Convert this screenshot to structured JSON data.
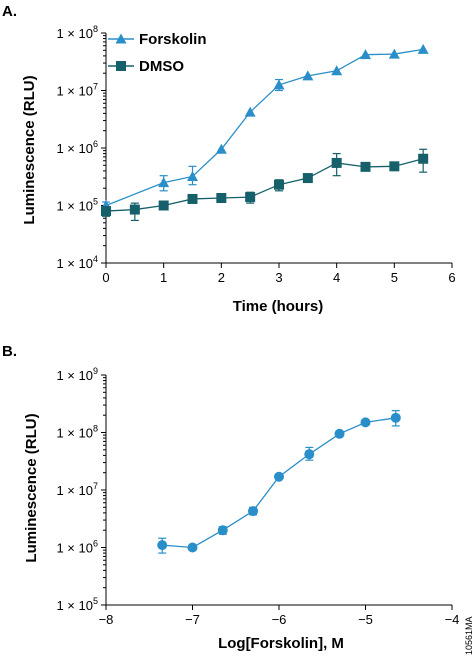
{
  "panel_a_label": "A.",
  "panel_b_label": "B.",
  "figure_code": "10561MA",
  "colors": {
    "forskolin": "#2a8fc8",
    "dmso": "#15606a"
  },
  "chart_data": [
    {
      "type": "line",
      "xlabel": "Time (hours)",
      "ylabel": "Luminescence (RLU)",
      "xlim": [
        0,
        6
      ],
      "ylim_exp": [
        4,
        8
      ],
      "y_scale": "log",
      "x_ticks": [
        0,
        1,
        2,
        3,
        4,
        5,
        6
      ],
      "x_tick_labels": [
        "0",
        "1",
        "2",
        "3",
        "4",
        "5",
        "6"
      ],
      "y_tick_exps": [
        4,
        5,
        6,
        7,
        8
      ],
      "y_tick_prefix": "1 × 10",
      "y_tick_exp_labels": [
        "4",
        "5",
        "6",
        "7",
        "8"
      ],
      "grid": false,
      "legend_position": "top-left",
      "series": [
        {
          "name": "Forskolin",
          "marker": "triangle",
          "x": [
            0,
            1,
            1.5,
            2,
            2.5,
            3,
            3.5,
            4,
            4.5,
            5,
            5.5
          ],
          "y": [
            100000,
            250000,
            320000,
            950000,
            4200000,
            12500000,
            18000000,
            22000000,
            42000000,
            43000000,
            52000000
          ],
          "err_low": [
            85000,
            180000,
            230000,
            950000,
            4200000,
            10000000,
            18000000,
            22000000,
            42000000,
            43000000,
            52000000
          ],
          "err_high": [
            115000,
            330000,
            480000,
            950000,
            4200000,
            15500000,
            18000000,
            22000000,
            42000000,
            43000000,
            52000000
          ]
        },
        {
          "name": "DMSO",
          "marker": "square",
          "x": [
            0,
            0.5,
            1,
            1.5,
            2,
            2.5,
            3,
            3.5,
            4,
            4.5,
            5,
            5.5
          ],
          "y": [
            80000,
            85000,
            100000,
            130000,
            135000,
            140000,
            230000,
            300000,
            550000,
            470000,
            480000,
            650000
          ],
          "err_low": [
            65000,
            55000,
            85000,
            130000,
            135000,
            110000,
            180000,
            300000,
            330000,
            470000,
            480000,
            380000
          ],
          "err_high": [
            95000,
            110000,
            115000,
            130000,
            135000,
            170000,
            280000,
            300000,
            800000,
            470000,
            480000,
            950000
          ]
        }
      ]
    },
    {
      "type": "line",
      "xlabel": "Log[Forskolin], M",
      "ylabel": "Luminescence (RLU)",
      "xlim": [
        -8,
        -4
      ],
      "ylim_exp": [
        5,
        9
      ],
      "y_scale": "log",
      "x_ticks": [
        -8,
        -7,
        -6,
        -5,
        -4
      ],
      "x_tick_labels": [
        "−8",
        "−7",
        "−6",
        "−5",
        "−4"
      ],
      "y_tick_exps": [
        5,
        6,
        7,
        8,
        9
      ],
      "y_tick_prefix": "1 × 10",
      "y_tick_exp_labels": [
        "5",
        "6",
        "7",
        "8",
        "9"
      ],
      "grid": false,
      "series": [
        {
          "marker": "circle",
          "x": [
            -7.35,
            -7,
            -6.65,
            -6.3,
            -6,
            -5.65,
            -5.3,
            -5,
            -4.65
          ],
          "y": [
            1100000,
            1000000,
            2000000,
            4300000,
            17000000,
            42000000,
            95000000,
            150000000,
            180000000
          ],
          "err_low": [
            800000,
            900000,
            1700000,
            3700000,
            17000000,
            33000000,
            85000000,
            150000000,
            130000000
          ],
          "err_high": [
            1450000,
            1100000,
            2300000,
            5000000,
            17000000,
            55000000,
            105000000,
            150000000,
            240000000
          ]
        }
      ]
    }
  ]
}
